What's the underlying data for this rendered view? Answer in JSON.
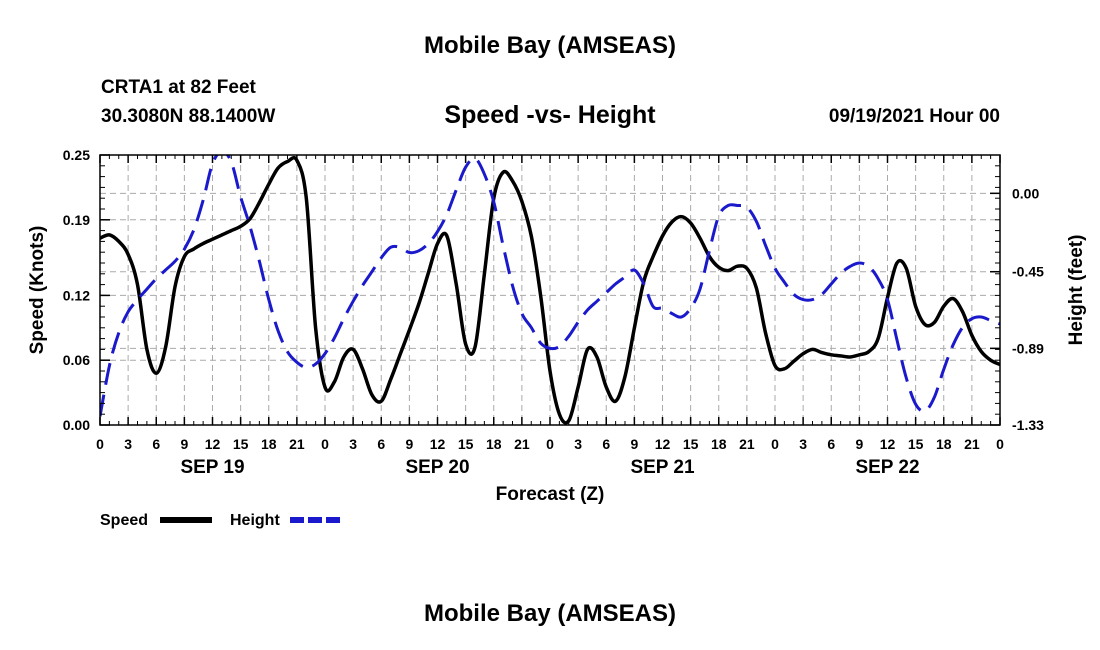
{
  "header": {
    "title": "Mobile Bay (AMSEAS)",
    "station": "CRTA1 at 82 Feet",
    "coords": "30.3080N  88.1400W",
    "subtitle": "Speed -vs- Height",
    "timestamp": "09/19/2021 Hour 00"
  },
  "footer": {
    "title": "Mobile Bay (AMSEAS)"
  },
  "colors": {
    "speed": "#000000",
    "height": "#1a1acc",
    "grid": "#aaaaaa"
  },
  "chart_data": {
    "type": "line",
    "xlabel": "Forecast (Z)",
    "ylabel_left": "Speed (Knots)",
    "ylabel_right": "Height (feet)",
    "x_range_hours": [
      0,
      96
    ],
    "hour_tick_labels": [
      "0",
      "3",
      "6",
      "9",
      "12",
      "15",
      "18",
      "21",
      "0",
      "3",
      "6",
      "9",
      "12",
      "15",
      "18",
      "21",
      "0",
      "3",
      "6",
      "9",
      "12",
      "15",
      "18",
      "21",
      "0",
      "3",
      "6",
      "9",
      "12",
      "15",
      "18",
      "21",
      "0"
    ],
    "date_labels": [
      {
        "label": "SEP 19",
        "hour": 12
      },
      {
        "label": "SEP 20",
        "hour": 36
      },
      {
        "label": "SEP 21",
        "hour": 60
      },
      {
        "label": "SEP 22",
        "hour": 84
      }
    ],
    "left_axis": {
      "ylim": [
        0,
        0.25
      ],
      "ticks": [
        "0.00",
        "0.06",
        "0.12",
        "0.19",
        "0.25"
      ]
    },
    "right_axis": {
      "ylim": [
        -1.33,
        0.22
      ],
      "tick_values": [
        0.0,
        -0.45,
        -0.89,
        -1.33
      ],
      "ticks": [
        "0.00",
        "-0.45",
        "-0.89",
        "-1.33"
      ]
    },
    "grid": true,
    "legend_position": "bottom-left",
    "series": [
      {
        "name": "Speed",
        "axis": "left",
        "style": "solid",
        "x": [
          0,
          1,
          2,
          3,
          4,
          5,
          6,
          7,
          8,
          9,
          10,
          11,
          12,
          13,
          14,
          15,
          16,
          17,
          18,
          19,
          20,
          21,
          22,
          23,
          24,
          25,
          26,
          27,
          28,
          29,
          30,
          31,
          32,
          33,
          34,
          35,
          36,
          37,
          38,
          39,
          40,
          41,
          42,
          43,
          44,
          45,
          46,
          47,
          48,
          49,
          50,
          51,
          52,
          53,
          54,
          55,
          56,
          57,
          58,
          59,
          60,
          61,
          62,
          63,
          64,
          65,
          66,
          67,
          68,
          69,
          70,
          71,
          72,
          73,
          74,
          75,
          76,
          77,
          78,
          79,
          80,
          81,
          82,
          83,
          84,
          85,
          86,
          87,
          88,
          89,
          90,
          91,
          92,
          93,
          94,
          95,
          96
        ],
        "values": [
          0.173,
          0.176,
          0.17,
          0.158,
          0.13,
          0.07,
          0.048,
          0.072,
          0.128,
          0.156,
          0.163,
          0.168,
          0.172,
          0.176,
          0.18,
          0.184,
          0.191,
          0.206,
          0.223,
          0.238,
          0.244,
          0.245,
          0.21,
          0.09,
          0.035,
          0.04,
          0.063,
          0.07,
          0.052,
          0.028,
          0.022,
          0.042,
          0.065,
          0.088,
          0.112,
          0.14,
          0.168,
          0.175,
          0.13,
          0.075,
          0.072,
          0.14,
          0.21,
          0.234,
          0.226,
          0.207,
          0.175,
          0.12,
          0.05,
          0.01,
          0.004,
          0.035,
          0.07,
          0.063,
          0.035,
          0.022,
          0.045,
          0.09,
          0.133,
          0.156,
          0.175,
          0.188,
          0.193,
          0.187,
          0.173,
          0.156,
          0.146,
          0.143,
          0.147,
          0.145,
          0.127,
          0.085,
          0.055,
          0.052,
          0.059,
          0.066,
          0.07,
          0.067,
          0.065,
          0.064,
          0.063,
          0.065,
          0.068,
          0.08,
          0.118,
          0.15,
          0.145,
          0.11,
          0.093,
          0.095,
          0.11,
          0.117,
          0.105,
          0.083,
          0.068,
          0.06,
          0.056
        ]
      },
      {
        "name": "Height",
        "axis": "right",
        "style": "dashed",
        "x": [
          0,
          1,
          2,
          3,
          4,
          5,
          6,
          7,
          8,
          9,
          10,
          11,
          12,
          13,
          14,
          15,
          16,
          17,
          18,
          19,
          20,
          21,
          22,
          23,
          24,
          25,
          26,
          27,
          28,
          29,
          30,
          31,
          32,
          33,
          34,
          35,
          36,
          37,
          38,
          39,
          40,
          41,
          42,
          43,
          44,
          45,
          46,
          47,
          48,
          49,
          50,
          51,
          52,
          53,
          54,
          55,
          56,
          57,
          58,
          59,
          60,
          61,
          62,
          63,
          64,
          65,
          66,
          67,
          68,
          69,
          70,
          71,
          72,
          73,
          74,
          75,
          76,
          77,
          78,
          79,
          80,
          81,
          82,
          83,
          84,
          85,
          86,
          87,
          88,
          89,
          90,
          91,
          92,
          93,
          94,
          95,
          96
        ],
        "values": [
          -1.28,
          -0.99,
          -0.8,
          -0.68,
          -0.61,
          -0.55,
          -0.49,
          -0.44,
          -0.39,
          -0.32,
          -0.21,
          -0.04,
          0.17,
          0.24,
          0.18,
          -0.02,
          -0.19,
          -0.39,
          -0.61,
          -0.79,
          -0.91,
          -0.97,
          -1.0,
          -0.98,
          -0.92,
          -0.83,
          -0.72,
          -0.62,
          -0.53,
          -0.45,
          -0.37,
          -0.31,
          -0.31,
          -0.34,
          -0.33,
          -0.29,
          -0.22,
          -0.12,
          0.02,
          0.15,
          0.2,
          0.11,
          -0.05,
          -0.3,
          -0.53,
          -0.69,
          -0.77,
          -0.86,
          -0.89,
          -0.88,
          -0.82,
          -0.74,
          -0.67,
          -0.62,
          -0.57,
          -0.52,
          -0.48,
          -0.44,
          -0.52,
          -0.65,
          -0.66,
          -0.69,
          -0.71,
          -0.66,
          -0.55,
          -0.33,
          -0.13,
          -0.07,
          -0.07,
          -0.08,
          -0.16,
          -0.3,
          -0.43,
          -0.51,
          -0.58,
          -0.61,
          -0.61,
          -0.58,
          -0.52,
          -0.46,
          -0.42,
          -0.4,
          -0.42,
          -0.49,
          -0.61,
          -0.84,
          -1.06,
          -1.21,
          -1.25,
          -1.17,
          -1.01,
          -0.87,
          -0.77,
          -0.72,
          -0.71,
          -0.73,
          -0.75
        ]
      }
    ],
    "legend": [
      {
        "label": "Speed",
        "style": "solid"
      },
      {
        "label": "Height",
        "style": "dashed"
      }
    ]
  }
}
